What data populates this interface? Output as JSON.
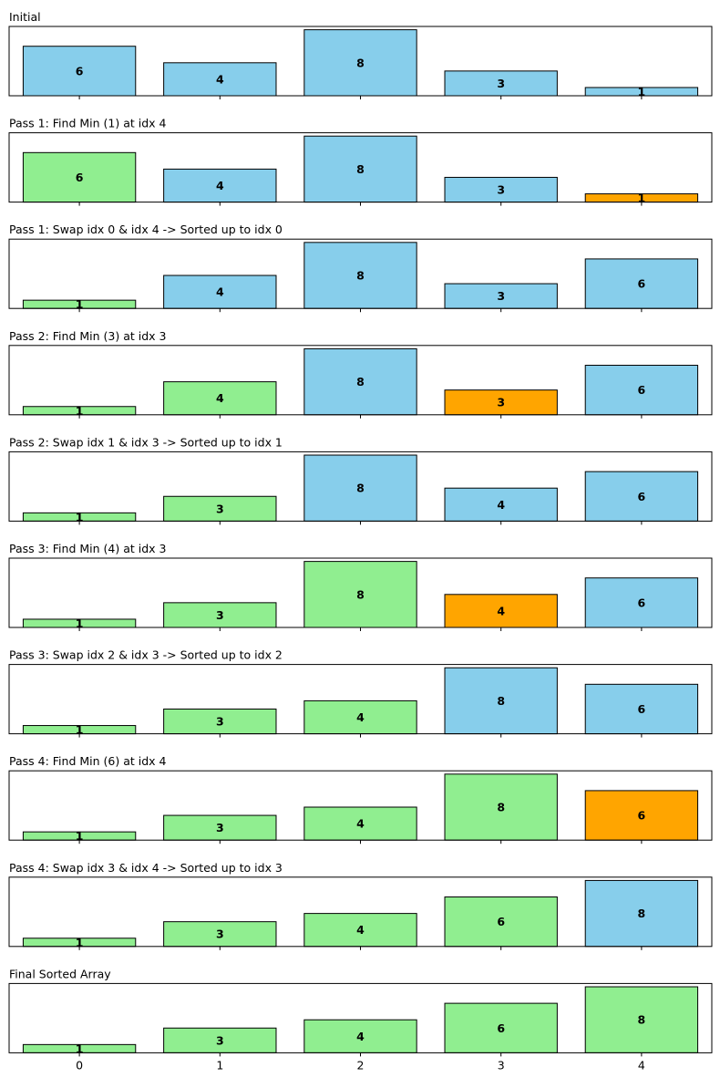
{
  "colors": {
    "unsorted": "#87ceeb",
    "sorted": "#90ee90",
    "min": "#ffa500",
    "edge": "#000000"
  },
  "chart_data": [
    {
      "type": "bar",
      "title": "Initial",
      "categories": [
        "0",
        "1",
        "2",
        "3",
        "4"
      ],
      "values": [
        6,
        4,
        8,
        3,
        1
      ],
      "states": [
        "unsorted",
        "unsorted",
        "unsorted",
        "unsorted",
        "unsorted"
      ],
      "ylim": [
        0,
        8.4
      ]
    },
    {
      "type": "bar",
      "title": "Pass 1: Find Min (1) at idx 4",
      "categories": [
        "0",
        "1",
        "2",
        "3",
        "4"
      ],
      "values": [
        6,
        4,
        8,
        3,
        1
      ],
      "states": [
        "sorted",
        "unsorted",
        "unsorted",
        "unsorted",
        "min"
      ],
      "ylim": [
        0,
        8.4
      ]
    },
    {
      "type": "bar",
      "title": "Pass 1: Swap idx 0 & idx 4 -> Sorted up to idx 0",
      "categories": [
        "0",
        "1",
        "2",
        "3",
        "4"
      ],
      "values": [
        1,
        4,
        8,
        3,
        6
      ],
      "states": [
        "sorted",
        "unsorted",
        "unsorted",
        "unsorted",
        "unsorted"
      ],
      "ylim": [
        0,
        8.4
      ]
    },
    {
      "type": "bar",
      "title": "Pass 2: Find Min (3) at idx 3",
      "categories": [
        "0",
        "1",
        "2",
        "3",
        "4"
      ],
      "values": [
        1,
        4,
        8,
        3,
        6
      ],
      "states": [
        "sorted",
        "sorted",
        "unsorted",
        "min",
        "unsorted"
      ],
      "ylim": [
        0,
        8.4
      ]
    },
    {
      "type": "bar",
      "title": "Pass 2: Swap idx 1 & idx 3 -> Sorted up to idx 1",
      "categories": [
        "0",
        "1",
        "2",
        "3",
        "4"
      ],
      "values": [
        1,
        3,
        8,
        4,
        6
      ],
      "states": [
        "sorted",
        "sorted",
        "unsorted",
        "unsorted",
        "unsorted"
      ],
      "ylim": [
        0,
        8.4
      ]
    },
    {
      "type": "bar",
      "title": "Pass 3: Find Min (4) at idx 3",
      "categories": [
        "0",
        "1",
        "2",
        "3",
        "4"
      ],
      "values": [
        1,
        3,
        8,
        4,
        6
      ],
      "states": [
        "sorted",
        "sorted",
        "sorted",
        "min",
        "unsorted"
      ],
      "ylim": [
        0,
        8.4
      ]
    },
    {
      "type": "bar",
      "title": "Pass 3: Swap idx 2 & idx 3 -> Sorted up to idx 2",
      "categories": [
        "0",
        "1",
        "2",
        "3",
        "4"
      ],
      "values": [
        1,
        3,
        4,
        8,
        6
      ],
      "states": [
        "sorted",
        "sorted",
        "sorted",
        "unsorted",
        "unsorted"
      ],
      "ylim": [
        0,
        8.4
      ]
    },
    {
      "type": "bar",
      "title": "Pass 4: Find Min (6) at idx 4",
      "categories": [
        "0",
        "1",
        "2",
        "3",
        "4"
      ],
      "values": [
        1,
        3,
        4,
        8,
        6
      ],
      "states": [
        "sorted",
        "sorted",
        "sorted",
        "sorted",
        "min"
      ],
      "ylim": [
        0,
        8.4
      ]
    },
    {
      "type": "bar",
      "title": "Pass 4: Swap idx 3 & idx 4 -> Sorted up to idx 3",
      "categories": [
        "0",
        "1",
        "2",
        "3",
        "4"
      ],
      "values": [
        1,
        3,
        4,
        6,
        8
      ],
      "states": [
        "sorted",
        "sorted",
        "sorted",
        "sorted",
        "unsorted"
      ],
      "ylim": [
        0,
        8.4
      ]
    },
    {
      "type": "bar",
      "title": "Final Sorted Array",
      "categories": [
        "0",
        "1",
        "2",
        "3",
        "4"
      ],
      "values": [
        1,
        3,
        4,
        6,
        8
      ],
      "states": [
        "sorted",
        "sorted",
        "sorted",
        "sorted",
        "sorted"
      ],
      "ylim": [
        0,
        8.4
      ]
    }
  ]
}
